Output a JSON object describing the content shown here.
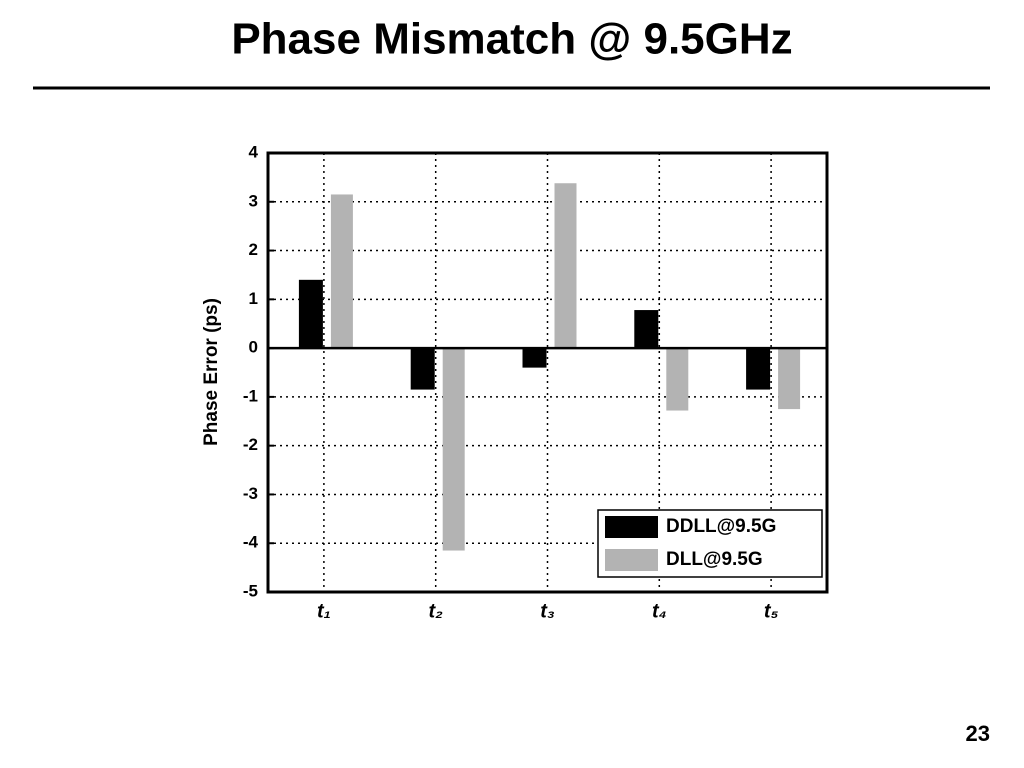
{
  "title": "Phase Mismatch @ 9.5GHz",
  "page_number": "23",
  "chart_data": {
    "type": "bar",
    "ylabel": "Phase Error (ps)",
    "categories": [
      "t₁",
      "t₂",
      "t₃",
      "t₄",
      "t₅"
    ],
    "series": [
      {
        "name": "DDLL@9.5G",
        "color": "#000000",
        "values": [
          1.4,
          -0.85,
          -0.4,
          0.78,
          -0.85
        ]
      },
      {
        "name": "DLL@9.5G",
        "color": "#b3b3b3",
        "values": [
          3.15,
          -4.15,
          3.38,
          -1.28,
          -1.25
        ]
      }
    ],
    "ylim": [
      -5,
      4
    ],
    "yticks": [
      -5,
      -4,
      -3,
      -2,
      -1,
      0,
      1,
      2,
      3,
      4
    ],
    "grid": true,
    "legend": "lower right"
  }
}
